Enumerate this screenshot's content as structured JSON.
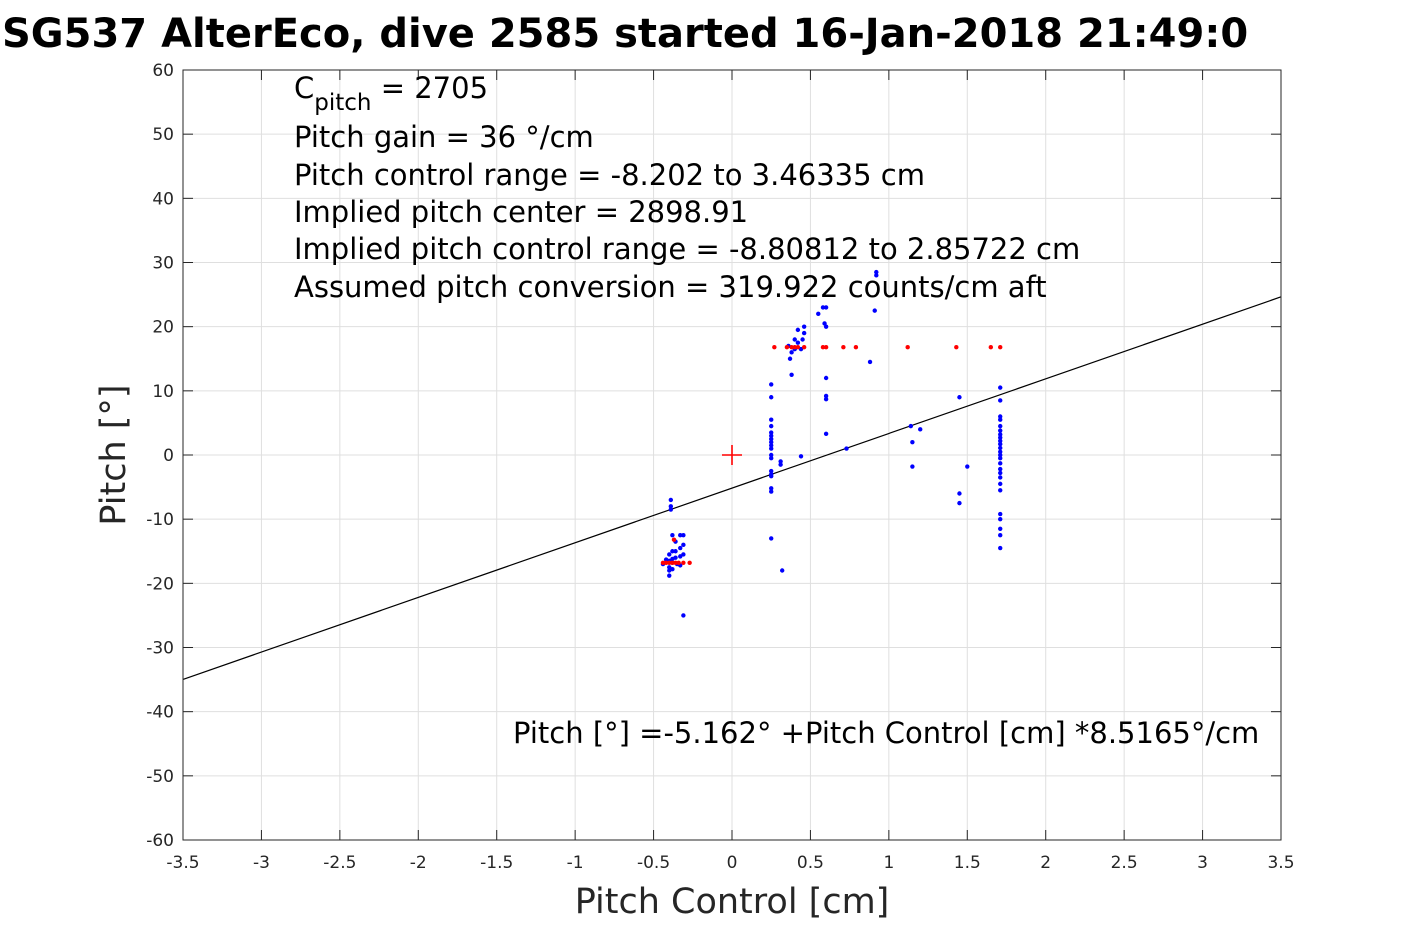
{
  "chart_data": {
    "type": "scatter",
    "title": "SG537 AlterEco, dive 2585 started 16-Jan-2018 21:49:0",
    "xlabel": "Pitch Control [cm]",
    "ylabel": "Pitch [°]",
    "xlim": [
      -3.5,
      3.5
    ],
    "ylim": [
      -60,
      60
    ],
    "xticks": [
      "-3.5",
      "-3",
      "-2.5",
      "-2",
      "-1.5",
      "-1",
      "-0.5",
      "0",
      "0.5",
      "1",
      "1.5",
      "2",
      "2.5",
      "3",
      "3.5"
    ],
    "yticks": [
      "-60",
      "-50",
      "-40",
      "-30",
      "-20",
      "-10",
      "0",
      "10",
      "20",
      "30",
      "40",
      "50",
      "60"
    ],
    "grid": true,
    "colors": {
      "observed": "#0000ff",
      "model": "#ff0000",
      "fit": "#000000",
      "center": "#ff0000"
    },
    "annotations": {
      "c_pitch_main": "C",
      "c_pitch_sub": "pitch",
      "c_pitch_value": " = 2705",
      "pitch_gain": "Pitch gain = 36 °/cm",
      "pitch_control_range": "Pitch control range = -8.202 to 3.46335 cm",
      "implied_pitch_center": "Implied pitch center = 2898.91",
      "implied_pitch_control_range": "Implied pitch control range = -8.80812 to 2.85722 cm",
      "assumed_pitch_conversion": "Assumed pitch conversion = 319.922 counts/cm aft",
      "fit_equation": "Pitch [°] =-5.162° +Pitch Control [cm] *8.5165°/cm"
    },
    "fit_line": {
      "intercept": -5.162,
      "slope": 8.5165
    },
    "center_marker": {
      "x": 0,
      "y": 0
    },
    "series": [
      {
        "kind": "observed",
        "points": [
          [
            -0.39,
            -7
          ],
          [
            -0.39,
            -8
          ],
          [
            -0.39,
            -8.5
          ],
          [
            -0.38,
            -12.5
          ],
          [
            -0.33,
            -12.5
          ],
          [
            -0.31,
            -12.5
          ],
          [
            -0.36,
            -13.5
          ],
          [
            -0.31,
            -14
          ],
          [
            -0.33,
            -14.5
          ],
          [
            -0.36,
            -15
          ],
          [
            -0.38,
            -15
          ],
          [
            -0.4,
            -15.5
          ],
          [
            -0.31,
            -15.5
          ],
          [
            -0.33,
            -15.8
          ],
          [
            -0.36,
            -16
          ],
          [
            -0.38,
            -16.2
          ],
          [
            -0.42,
            -16.3
          ],
          [
            -0.4,
            -16.5
          ],
          [
            -0.38,
            -16.8
          ],
          [
            -0.35,
            -17
          ],
          [
            -0.44,
            -17
          ],
          [
            -0.4,
            -17.5
          ],
          [
            -0.38,
            -17.8
          ],
          [
            -0.33,
            -17.2
          ],
          [
            -0.4,
            -18
          ],
          [
            -0.4,
            -18.8
          ],
          [
            -0.31,
            -25
          ],
          [
            0.25,
            11
          ],
          [
            0.25,
            9
          ],
          [
            0.25,
            5.5
          ],
          [
            0.25,
            4.5
          ],
          [
            0.25,
            3.5
          ],
          [
            0.25,
            3
          ],
          [
            0.25,
            2.5
          ],
          [
            0.25,
            2
          ],
          [
            0.25,
            1.5
          ],
          [
            0.25,
            1
          ],
          [
            0.25,
            0
          ],
          [
            0.25,
            -0.5
          ],
          [
            0.25,
            -2.5
          ],
          [
            0.25,
            -3
          ],
          [
            0.25,
            -3.3
          ],
          [
            0.25,
            -5.2
          ],
          [
            0.25,
            -5.7
          ],
          [
            0.25,
            -13
          ],
          [
            0.31,
            -1
          ],
          [
            0.31,
            -1.5
          ],
          [
            0.32,
            -18
          ],
          [
            0.36,
            17
          ],
          [
            0.37,
            15
          ],
          [
            0.38,
            12.5
          ],
          [
            0.38,
            16
          ],
          [
            0.4,
            16.5
          ],
          [
            0.4,
            18
          ],
          [
            0.42,
            19.5
          ],
          [
            0.42,
            17.5
          ],
          [
            0.44,
            16.5
          ],
          [
            0.45,
            18
          ],
          [
            0.46,
            19
          ],
          [
            0.46,
            20
          ],
          [
            0.44,
            -0.2
          ],
          [
            0.55,
            22
          ],
          [
            0.58,
            23
          ],
          [
            0.59,
            20.5
          ],
          [
            0.6,
            20
          ],
          [
            0.6,
            23
          ],
          [
            0.6,
            12
          ],
          [
            0.6,
            9.2
          ],
          [
            0.6,
            8.7
          ],
          [
            0.6,
            3.3
          ],
          [
            0.73,
            1
          ],
          [
            0.88,
            14.5
          ],
          [
            0.91,
            22.5
          ],
          [
            0.92,
            28
          ],
          [
            0.92,
            28.5
          ],
          [
            1.14,
            4.5
          ],
          [
            1.15,
            2
          ],
          [
            1.15,
            -1.8
          ],
          [
            1.2,
            4
          ],
          [
            1.45,
            9
          ],
          [
            1.45,
            -6
          ],
          [
            1.45,
            -7.5
          ],
          [
            1.5,
            -1.8
          ],
          [
            1.71,
            10.5
          ],
          [
            1.71,
            8.5
          ],
          [
            1.71,
            6
          ],
          [
            1.71,
            5.5
          ],
          [
            1.71,
            4.5
          ],
          [
            1.71,
            3.8
          ],
          [
            1.71,
            3.2
          ],
          [
            1.71,
            2.7
          ],
          [
            1.71,
            2.2
          ],
          [
            1.71,
            1.7
          ],
          [
            1.71,
            1.1
          ],
          [
            1.71,
            0.5
          ],
          [
            1.71,
            0
          ],
          [
            1.71,
            -0.5
          ],
          [
            1.71,
            -1.3
          ],
          [
            1.71,
            -2.2
          ],
          [
            1.71,
            -2.8
          ],
          [
            1.71,
            -3.5
          ],
          [
            1.71,
            -4.5
          ],
          [
            1.71,
            -5.5
          ],
          [
            1.71,
            -9.2
          ],
          [
            1.71,
            -10
          ],
          [
            1.71,
            -11.5
          ],
          [
            1.71,
            -12.5
          ],
          [
            1.71,
            -14.5
          ]
        ]
      },
      {
        "kind": "model",
        "points": [
          [
            -0.44,
            -16.8
          ],
          [
            -0.42,
            -16.8
          ],
          [
            -0.4,
            -16.8
          ],
          [
            -0.38,
            -16.8
          ],
          [
            -0.36,
            -16.8
          ],
          [
            -0.34,
            -16.8
          ],
          [
            -0.31,
            -16.8
          ],
          [
            -0.27,
            -16.8
          ],
          [
            -0.37,
            -13.2
          ],
          [
            0.27,
            16.8
          ],
          [
            0.35,
            16.8
          ],
          [
            0.38,
            16.8
          ],
          [
            0.4,
            16.8
          ],
          [
            0.42,
            16.8
          ],
          [
            0.46,
            16.8
          ],
          [
            0.58,
            16.8
          ],
          [
            0.6,
            16.8
          ],
          [
            0.71,
            16.8
          ],
          [
            0.79,
            16.8
          ],
          [
            1.12,
            16.8
          ],
          [
            1.43,
            16.8
          ],
          [
            1.65,
            16.8
          ],
          [
            1.71,
            16.8
          ]
        ]
      }
    ]
  }
}
